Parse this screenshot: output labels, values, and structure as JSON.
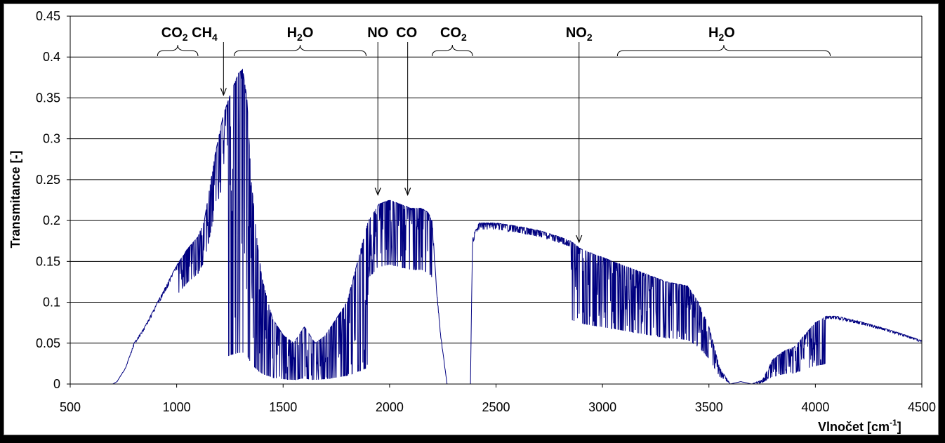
{
  "chart_data": {
    "type": "line",
    "xlabel": "Vlnočet [cm",
    "xlabel_sup": "-1",
    "xlabel_end": "]",
    "ylabel": "Transmitance [-]",
    "xlim": [
      500,
      4500
    ],
    "ylim": [
      0,
      0.45
    ],
    "x_ticks": [
      500,
      1000,
      1500,
      2000,
      2500,
      3000,
      3500,
      4000,
      4500
    ],
    "y_ticks": [
      0,
      0.05,
      0.1,
      0.15,
      0.2,
      0.25,
      0.3,
      0.35,
      0.4,
      0.45
    ],
    "x_tick_labels": [
      "500",
      "1000",
      "1500",
      "2000",
      "2500",
      "3000",
      "3500",
      "4000",
      "4500"
    ],
    "y_tick_labels": [
      "0",
      "0.05",
      "0.1",
      "0.15",
      "0.2",
      "0.25",
      "0.3",
      "0.35",
      "0.4",
      "0.45"
    ],
    "grid": "horizontal",
    "line_color": "#000080",
    "series": [
      {
        "envelope": [
          [
            500,
            0
          ],
          [
            700,
            0
          ],
          [
            720,
            0.003
          ],
          [
            760,
            0.02
          ],
          [
            800,
            0.05
          ],
          [
            850,
            0.07
          ],
          [
            900,
            0.095
          ],
          [
            950,
            0.12
          ],
          [
            1000,
            0.145
          ],
          [
            1050,
            0.165
          ],
          [
            1100,
            0.18
          ],
          [
            1130,
            0.2
          ],
          [
            1180,
            0.28
          ],
          [
            1220,
            0.33
          ],
          [
            1260,
            0.36
          ],
          [
            1290,
            0.38
          ],
          [
            1310,
            0.385
          ],
          [
            1330,
            0.35
          ],
          [
            1350,
            0.25
          ],
          [
            1380,
            0.17
          ],
          [
            1400,
            0.13
          ],
          [
            1450,
            0.08
          ],
          [
            1500,
            0.06
          ],
          [
            1550,
            0.05
          ],
          [
            1600,
            0.07
          ],
          [
            1650,
            0.05
          ],
          [
            1700,
            0.06
          ],
          [
            1750,
            0.08
          ],
          [
            1800,
            0.1
          ],
          [
            1850,
            0.15
          ],
          [
            1900,
            0.2
          ],
          [
            1950,
            0.22
          ],
          [
            2000,
            0.225
          ],
          [
            2050,
            0.22
          ],
          [
            2100,
            0.215
          ],
          [
            2150,
            0.215
          ],
          [
            2180,
            0.21
          ],
          [
            2200,
            0.2
          ],
          [
            2220,
            0.12
          ],
          [
            2240,
            0.06
          ],
          [
            2260,
            0.02
          ],
          [
            2270,
            0
          ],
          [
            2380,
            0
          ],
          [
            2385,
            0.1
          ],
          [
            2390,
            0.18
          ],
          [
            2420,
            0.197
          ],
          [
            2500,
            0.197
          ],
          [
            2600,
            0.193
          ],
          [
            2700,
            0.188
          ],
          [
            2800,
            0.18
          ],
          [
            2850,
            0.175
          ],
          [
            2900,
            0.165
          ],
          [
            2950,
            0.16
          ],
          [
            3000,
            0.155
          ],
          [
            3100,
            0.145
          ],
          [
            3200,
            0.135
          ],
          [
            3300,
            0.125
          ],
          [
            3400,
            0.12
          ],
          [
            3450,
            0.1
          ],
          [
            3500,
            0.07
          ],
          [
            3550,
            0.02
          ],
          [
            3600,
            0
          ],
          [
            3650,
            0.003
          ],
          [
            3700,
            0
          ],
          [
            3750,
            0.005
          ],
          [
            3800,
            0.03
          ],
          [
            3850,
            0.04
          ],
          [
            3900,
            0.045
          ],
          [
            3950,
            0.06
          ],
          [
            4000,
            0.075
          ],
          [
            4050,
            0.083
          ],
          [
            4100,
            0.083
          ],
          [
            4200,
            0.077
          ],
          [
            4300,
            0.07
          ],
          [
            4400,
            0.062
          ],
          [
            4500,
            0.053
          ]
        ]
      }
    ],
    "annotations": [
      {
        "label": "CO",
        "sub": "2",
        "label2": " CH",
        "sub2": "4",
        "x_center": 1060,
        "brace": [
          910,
          1100
        ],
        "arrow_x": 1220,
        "arrow_to_y": 0.35
      },
      {
        "label": "H",
        "sub": "2",
        "label2": "O",
        "sub2": "",
        "x_center": 1580,
        "brace": [
          1270,
          1890
        ]
      },
      {
        "label": "NO",
        "sub": "",
        "label2": "",
        "sub2": "",
        "x_center": 1945,
        "arrow_x": 1945,
        "arrow_to_y": 0.228
      },
      {
        "label": "CO",
        "sub": "",
        "label2": "",
        "sub2": "",
        "x_center": 2080,
        "arrow_x": 2085,
        "arrow_to_y": 0.228
      },
      {
        "label": "CO",
        "sub": "2",
        "label2": "",
        "sub2": "",
        "x_center": 2300,
        "brace": [
          2200,
          2390
        ]
      },
      {
        "label": "NO",
        "sub": "2",
        "label2": "",
        "sub2": "",
        "x_center": 2890,
        "arrow_x": 2890,
        "arrow_to_y": 0.17
      },
      {
        "label": "H",
        "sub": "2",
        "label2": "O",
        "sub2": "",
        "x_center": 3560,
        "brace": [
          3070,
          4070
        ]
      }
    ]
  }
}
